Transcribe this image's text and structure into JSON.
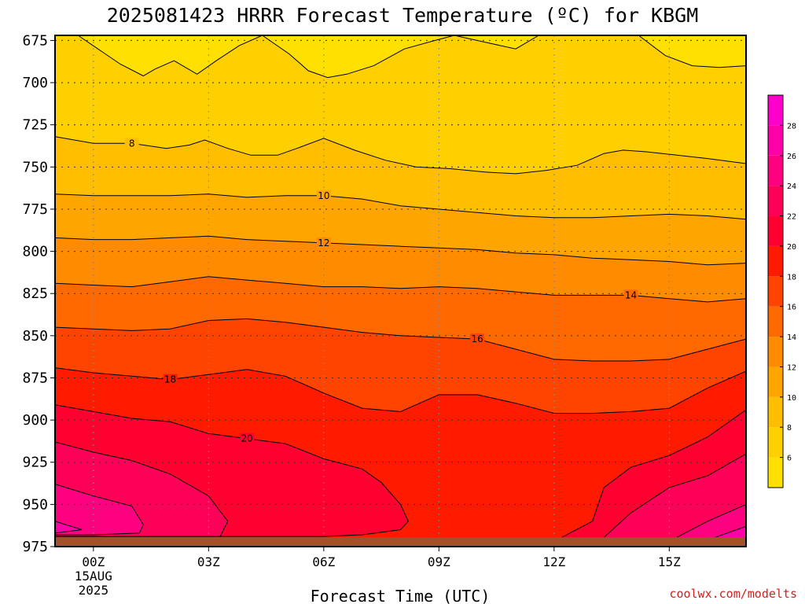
{
  "chart_data": {
    "type": "contour",
    "title": "2025081423 HRRR Forecast Temperature (ºC) for KBGM",
    "xlabel": "Forecast Time (UTC)",
    "ylabel": "",
    "credit": "coolwx.com/modelts",
    "x_range_hours": [
      -1,
      17
    ],
    "y_range_hpa": [
      975,
      672
    ],
    "y_ticks": [
      "675",
      "700",
      "725",
      "750",
      "775",
      "800",
      "825",
      "850",
      "875",
      "900",
      "925",
      "950",
      "975"
    ],
    "x_ticks": [
      {
        "hour": 0,
        "label": "00Z",
        "date": "15AUG",
        "year": "2025"
      },
      {
        "hour": 3,
        "label": "03Z"
      },
      {
        "hour": 6,
        "label": "06Z"
      },
      {
        "hour": 9,
        "label": "09Z"
      },
      {
        "hour": 12,
        "label": "12Z"
      },
      {
        "hour": 15,
        "label": "15Z"
      }
    ],
    "contour_interval_c": 2,
    "colorbar": {
      "ticks": [
        "6",
        "8",
        "10",
        "12",
        "14",
        "16",
        "18",
        "20",
        "22",
        "24",
        "26",
        "28"
      ],
      "bands": [
        {
          "lo": 4,
          "hi": 6,
          "color": "#ffe000"
        },
        {
          "lo": 6,
          "hi": 8,
          "color": "#ffd000"
        },
        {
          "lo": 8,
          "hi": 10,
          "color": "#ffbf00"
        },
        {
          "lo": 10,
          "hi": 12,
          "color": "#ffa500"
        },
        {
          "lo": 12,
          "hi": 14,
          "color": "#ff8c00"
        },
        {
          "lo": 14,
          "hi": 16,
          "color": "#ff6900"
        },
        {
          "lo": 16,
          "hi": 18,
          "color": "#ff4400"
        },
        {
          "lo": 18,
          "hi": 20,
          "color": "#ff1a00"
        },
        {
          "lo": 20,
          "hi": 22,
          "color": "#ff0030"
        },
        {
          "lo": 22,
          "hi": 24,
          "color": "#ff0058"
        },
        {
          "lo": 24,
          "hi": 26,
          "color": "#ff0080"
        },
        {
          "lo": 26,
          "hi": 28,
          "color": "#ff00a8"
        },
        {
          "lo": 28,
          "hi": 30,
          "color": "#ff00cc"
        }
      ]
    },
    "ground_color": "#a0522d",
    "ground_pressure_hpa": 969.5,
    "contours": [
      {
        "temp": 6,
        "label": null,
        "points": [
          [
            -0.4,
            672
          ],
          [
            0.7,
            689
          ],
          [
            1.3,
            696
          ],
          [
            1.6,
            692
          ],
          [
            2.1,
            687
          ],
          [
            2.7,
            695
          ],
          [
            3.2,
            687
          ],
          [
            3.8,
            678
          ],
          [
            4.4,
            672
          ],
          [
            5.1,
            683
          ],
          [
            5.6,
            693
          ],
          [
            6.1,
            697
          ],
          [
            6.6,
            695
          ],
          [
            7.3,
            690
          ],
          [
            8.1,
            680
          ],
          [
            8.9,
            675
          ],
          [
            9.4,
            672
          ],
          [
            10.2,
            676
          ],
          [
            11.0,
            680
          ],
          [
            11.6,
            672
          ]
        ]
      },
      {
        "temp": 6,
        "label": null,
        "points": [
          [
            14.2,
            672
          ],
          [
            14.9,
            684
          ],
          [
            15.6,
            690
          ],
          [
            16.3,
            691
          ],
          [
            17,
            690
          ]
        ]
      },
      {
        "temp": 8,
        "label": "8",
        "label_at": [
          1.0,
          736
        ],
        "points": [
          [
            -1,
            732
          ],
          [
            0,
            736
          ],
          [
            1.0,
            736
          ],
          [
            1.9,
            739
          ],
          [
            2.5,
            737
          ],
          [
            2.9,
            734
          ],
          [
            3.5,
            739
          ],
          [
            4.1,
            743
          ],
          [
            4.8,
            743
          ],
          [
            5.3,
            739
          ],
          [
            6.0,
            733
          ],
          [
            6.8,
            740
          ],
          [
            7.6,
            746
          ],
          [
            8.4,
            750
          ],
          [
            9.3,
            751
          ],
          [
            10.2,
            753
          ],
          [
            11.0,
            754
          ],
          [
            11.8,
            752
          ],
          [
            12.6,
            749
          ],
          [
            13.3,
            742
          ],
          [
            13.8,
            740
          ],
          [
            14.4,
            741
          ],
          [
            15.2,
            743
          ],
          [
            16.0,
            745
          ],
          [
            17,
            748
          ]
        ]
      },
      {
        "temp": 10,
        "label": "10",
        "label_at": [
          6.0,
          767
        ],
        "points": [
          [
            -1,
            766
          ],
          [
            0,
            767
          ],
          [
            1.0,
            767
          ],
          [
            2.0,
            767
          ],
          [
            3.0,
            766
          ],
          [
            4.0,
            768
          ],
          [
            5.0,
            767
          ],
          [
            6.0,
            767
          ],
          [
            7.0,
            769
          ],
          [
            8.0,
            773
          ],
          [
            9.0,
            775
          ],
          [
            10.0,
            777
          ],
          [
            11.0,
            779
          ],
          [
            12.0,
            780
          ],
          [
            13.0,
            780
          ],
          [
            14.0,
            779
          ],
          [
            15.0,
            778
          ],
          [
            16.0,
            779
          ],
          [
            17,
            781
          ]
        ]
      },
      {
        "temp": 12,
        "label": "12",
        "label_at": [
          6.0,
          795
        ],
        "points": [
          [
            -1,
            792
          ],
          [
            0,
            793
          ],
          [
            1.0,
            793
          ],
          [
            2.0,
            792
          ],
          [
            3.0,
            791
          ],
          [
            4.0,
            793
          ],
          [
            5.0,
            794
          ],
          [
            6.0,
            795
          ],
          [
            7.0,
            796
          ],
          [
            8.0,
            797
          ],
          [
            9.0,
            798
          ],
          [
            10.0,
            799
          ],
          [
            11.0,
            801
          ],
          [
            12.0,
            802
          ],
          [
            13.0,
            804
          ],
          [
            14.0,
            805
          ],
          [
            15.0,
            806
          ],
          [
            16.0,
            808
          ],
          [
            17,
            807
          ]
        ]
      },
      {
        "temp": 14,
        "label": "14",
        "label_at": [
          14.0,
          826
        ],
        "points": [
          [
            -1,
            819
          ],
          [
            0,
            820
          ],
          [
            1.0,
            821
          ],
          [
            2.0,
            818
          ],
          [
            3.0,
            815
          ],
          [
            4.0,
            817
          ],
          [
            5.0,
            819
          ],
          [
            6.0,
            821
          ],
          [
            7.0,
            821
          ],
          [
            8.0,
            822
          ],
          [
            9.0,
            821
          ],
          [
            10.0,
            822
          ],
          [
            11.0,
            824
          ],
          [
            12.0,
            826
          ],
          [
            13.0,
            826
          ],
          [
            14.0,
            826
          ],
          [
            15.0,
            828
          ],
          [
            16.0,
            830
          ],
          [
            17,
            828
          ]
        ]
      },
      {
        "temp": 16,
        "label": "16",
        "label_at": [
          10.0,
          852
        ],
        "points": [
          [
            -1,
            845
          ],
          [
            0,
            846
          ],
          [
            1.0,
            847
          ],
          [
            2.0,
            846
          ],
          [
            3.0,
            841
          ],
          [
            4.0,
            840
          ],
          [
            5.0,
            842
          ],
          [
            6.0,
            845
          ],
          [
            7.0,
            848
          ],
          [
            8.0,
            850
          ],
          [
            9.0,
            851
          ],
          [
            10.0,
            852
          ],
          [
            11.0,
            858
          ],
          [
            12.0,
            864
          ],
          [
            13.0,
            865
          ],
          [
            14.0,
            865
          ],
          [
            15.0,
            864
          ],
          [
            16.0,
            858
          ],
          [
            17,
            852
          ]
        ]
      },
      {
        "temp": 18,
        "label": "18",
        "label_at": [
          2.0,
          876
        ],
        "points": [
          [
            -1,
            869
          ],
          [
            0,
            872
          ],
          [
            1.0,
            874
          ],
          [
            2.0,
            876
          ],
          [
            3.0,
            873
          ],
          [
            4.0,
            870
          ],
          [
            5.0,
            874
          ],
          [
            6.0,
            884
          ],
          [
            7.0,
            893
          ],
          [
            8.0,
            895
          ],
          [
            9.0,
            885
          ],
          [
            10.0,
            885
          ],
          [
            11.0,
            890
          ],
          [
            12.0,
            896
          ],
          [
            13.0,
            896
          ],
          [
            14.0,
            895
          ],
          [
            15.0,
            893
          ],
          [
            16.0,
            881
          ],
          [
            17,
            871
          ]
        ]
      },
      {
        "temp": 20,
        "label": "20",
        "label_at": [
          4.0,
          911
        ],
        "points": [
          [
            -1,
            891
          ],
          [
            0,
            895
          ],
          [
            1.0,
            899
          ],
          [
            2.0,
            901
          ],
          [
            3.0,
            908
          ],
          [
            4.0,
            911
          ],
          [
            5.0,
            914
          ],
          [
            6.0,
            923
          ],
          [
            7.0,
            929
          ],
          [
            7.5,
            937
          ],
          [
            8.0,
            950
          ],
          [
            8.2,
            960
          ],
          [
            8.0,
            965
          ],
          [
            7.0,
            968
          ],
          [
            6.0,
            969
          ],
          [
            5.0,
            969
          ],
          [
            4.0,
            969
          ],
          [
            3.0,
            969
          ],
          [
            2.0,
            969
          ],
          [
            1.0,
            969
          ],
          [
            0,
            969
          ],
          [
            -1,
            969
          ]
        ]
      },
      {
        "temp": 20,
        "label": null,
        "points": [
          [
            12.2,
            969.5
          ],
          [
            13.0,
            960
          ],
          [
            13.3,
            940
          ],
          [
            14.0,
            928
          ],
          [
            15.0,
            921
          ],
          [
            16.0,
            910
          ],
          [
            17,
            894
          ]
        ]
      },
      {
        "temp": 22,
        "label": null,
        "points": [
          [
            -1,
            913
          ],
          [
            0,
            919
          ],
          [
            1.0,
            924
          ],
          [
            2.0,
            932
          ],
          [
            3.0,
            945
          ],
          [
            3.5,
            960
          ],
          [
            3.3,
            969
          ],
          [
            2.0,
            969
          ],
          [
            1.0,
            969
          ],
          [
            0,
            969
          ],
          [
            -1,
            969
          ]
        ]
      },
      {
        "temp": 22,
        "label": null,
        "points": [
          [
            13.3,
            969.5
          ],
          [
            14.0,
            955
          ],
          [
            15.0,
            940
          ],
          [
            16.0,
            933
          ],
          [
            17,
            920
          ]
        ]
      },
      {
        "temp": 24,
        "label": null,
        "points": [
          [
            -1,
            938
          ],
          [
            0,
            945
          ],
          [
            1.0,
            951
          ],
          [
            1.3,
            962
          ],
          [
            1.2,
            967
          ],
          [
            0,
            968
          ],
          [
            -1,
            968
          ]
        ]
      },
      {
        "temp": 24,
        "label": null,
        "points": [
          [
            15.2,
            969.5
          ],
          [
            16.0,
            960
          ],
          [
            17,
            950
          ]
        ]
      },
      {
        "temp": 26,
        "label": null,
        "points": [
          [
            -1,
            960
          ],
          [
            -0.3,
            965
          ],
          [
            -1,
            967
          ]
        ]
      },
      {
        "temp": 26,
        "label": null,
        "points": [
          [
            16.2,
            969.5
          ],
          [
            17,
            963
          ]
        ]
      }
    ]
  }
}
